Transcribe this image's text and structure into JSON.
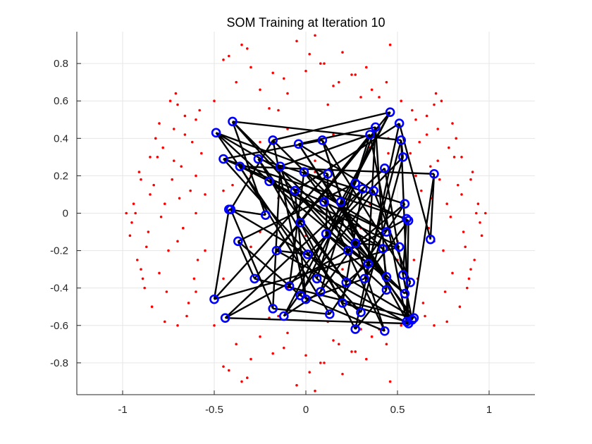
{
  "chart_data": {
    "type": "scatter",
    "title": "SOM Training at Iteration 10",
    "xlabel": "",
    "ylabel": "",
    "xlim": [
      -1.25,
      1.25
    ],
    "ylim": [
      -0.97,
      0.97
    ],
    "x_ticks": [
      -1,
      -0.5,
      0,
      0.5,
      1
    ],
    "x_tick_labels": [
      "-1",
      "-0.5",
      "0",
      "0.5",
      "1"
    ],
    "y_ticks": [
      -0.8,
      -0.6,
      -0.4,
      -0.2,
      0,
      0.2,
      0.4,
      0.6,
      0.8
    ],
    "y_tick_labels": [
      "-0.8",
      "-0.6",
      "-0.4",
      "-0.2",
      "0",
      "0.2",
      "0.4",
      "0.6",
      "0.8"
    ],
    "grid": true,
    "data_points_color": "#ff0000",
    "neuron_color": "#0000ff",
    "connection_color": "#000000",
    "data_points": {
      "x": [
        -0.72,
        -0.66,
        -0.81,
        -0.9,
        -0.77,
        -0.62,
        -0.95,
        -0.7,
        -0.85,
        -0.68,
        -0.92,
        -0.8,
        -0.74,
        -0.6,
        -0.88,
        -0.64,
        -0.78,
        -0.93,
        -0.7,
        -0.83,
        -0.58,
        -0.75,
        -0.9,
        -0.66,
        -0.86,
        -0.72,
        -0.61,
        -0.8,
        -0.96,
        -0.69,
        -0.84,
        -0.57,
        -0.76,
        -0.91,
        -0.63,
        -0.79,
        -0.87,
        -0.71,
        -0.94,
        -0.65,
        -0.82,
        -0.59,
        -0.73,
        -0.89,
        -0.67,
        -0.98,
        -0.6,
        -0.77,
        -0.85,
        -0.7,
        0.72,
        0.66,
        0.81,
        0.9,
        0.77,
        0.62,
        0.95,
        0.7,
        0.85,
        0.68,
        0.92,
        0.8,
        0.74,
        0.6,
        0.88,
        0.64,
        0.78,
        0.93,
        0.7,
        0.83,
        0.58,
        0.75,
        0.9,
        0.66,
        0.86,
        0.72,
        0.61,
        0.8,
        0.96,
        0.69,
        0.84,
        0.57,
        0.76,
        0.91,
        0.63,
        0.79,
        0.87,
        0.71,
        0.94,
        0.65,
        0.82,
        0.59,
        0.73,
        0.89,
        0.67,
        0.98,
        0.6,
        0.77,
        0.85,
        0.7,
        -0.45,
        -0.32,
        -0.18,
        -0.05,
        0.08,
        0.2,
        0.33,
        0.46,
        -0.38,
        -0.25,
        -0.12,
        0.02,
        0.15,
        0.27,
        0.4,
        -0.5,
        -0.3,
        -0.1,
        0.05,
        0.18,
        0.36,
        0.52,
        -0.42,
        -0.2,
        0.0,
        0.12,
        0.3,
        0.44,
        -0.35,
        -0.15,
        0.1,
        0.25,
        -0.45,
        -0.32,
        -0.18,
        -0.05,
        0.08,
        0.2,
        0.33,
        0.46,
        -0.38,
        -0.25,
        -0.12,
        0.02,
        0.15,
        0.27,
        0.4,
        -0.5,
        -0.3,
        -0.1,
        0.05,
        0.18,
        0.36,
        0.52,
        -0.42,
        -0.2,
        0.0,
        0.12,
        0.3,
        0.44,
        -0.35,
        -0.15,
        0.1,
        0.25,
        -0.55,
        -0.4,
        -0.25,
        -0.1,
        0.05,
        0.2,
        0.35,
        0.5,
        -0.55,
        -0.4,
        -0.25,
        -0.1,
        0.05,
        0.2,
        0.35,
        0.5,
        -0.6,
        -0.45,
        -0.3,
        -0.15,
        0.0,
        0.15,
        0.3,
        0.45,
        -0.6,
        -0.45,
        -0.3,
        -0.15,
        0.0,
        0.15,
        0.3,
        0.45
      ],
      "y": [
        0.45,
        0.52,
        0.3,
        0.18,
        0.05,
        0.38,
        -0.05,
        -0.15,
        0.1,
        0.25,
        -0.25,
        -0.32,
        0.6,
        0.2,
        -0.4,
        -0.48,
        0.35,
        0.0,
        -0.6,
        0.15,
        0.55,
        -0.2,
        -0.3,
        0.42,
        -0.1,
        0.28,
        -0.35,
        0.48,
        -0.12,
        0.08,
        -0.5,
        0.32,
        -0.42,
        0.22,
        0.12,
        -0.02,
        -0.18,
        0.64,
        0.05,
        -0.55,
        0.4,
        -0.25,
        0.18,
        -0.35,
        -0.08,
        0.0,
        0.5,
        -0.58,
        0.3,
        0.58,
        0.45,
        0.52,
        0.3,
        0.18,
        0.05,
        0.38,
        -0.05,
        -0.15,
        0.1,
        0.25,
        -0.25,
        -0.32,
        0.6,
        0.2,
        -0.4,
        -0.48,
        0.35,
        0.0,
        -0.6,
        0.15,
        0.55,
        -0.2,
        -0.3,
        0.42,
        -0.1,
        0.28,
        -0.35,
        0.48,
        -0.12,
        0.08,
        -0.5,
        0.32,
        -0.42,
        0.22,
        0.12,
        -0.02,
        -0.18,
        0.64,
        0.05,
        -0.55,
        0.4,
        -0.25,
        0.18,
        -0.35,
        -0.08,
        0.0,
        0.5,
        -0.58,
        0.3,
        0.58,
        0.82,
        0.88,
        0.75,
        0.92,
        0.8,
        0.86,
        0.78,
        0.9,
        0.7,
        0.66,
        0.72,
        0.85,
        0.68,
        0.74,
        0.62,
        0.6,
        0.78,
        0.64,
        0.95,
        0.7,
        0.66,
        0.6,
        0.84,
        0.56,
        0.76,
        0.58,
        0.62,
        0.7,
        0.9,
        0.55,
        0.8,
        0.74,
        -0.82,
        -0.88,
        -0.75,
        -0.92,
        -0.8,
        -0.86,
        -0.78,
        -0.9,
        -0.7,
        -0.66,
        -0.72,
        -0.85,
        -0.68,
        -0.74,
        -0.62,
        -0.6,
        -0.78,
        -0.64,
        -0.95,
        -0.7,
        -0.66,
        -0.6,
        -0.84,
        -0.56,
        -0.76,
        -0.58,
        -0.62,
        -0.7,
        -0.9,
        -0.55,
        -0.8,
        -0.74,
        0.1,
        0.3,
        -0.1,
        0.45,
        0.22,
        -0.3,
        0.05,
        -0.15,
        -0.2,
        0.15,
        0.38,
        -0.4,
        0.28,
        -0.05,
        0.35,
        -0.25,
        0.0,
        -0.35,
        0.2,
        0.08,
        -0.12,
        0.42,
        -0.28,
        0.32,
        -0.42,
        0.12,
        -0.18,
        0.25,
        -0.45,
        0.18,
        -0.08,
        0.4
      ]
    },
    "neurons": {
      "x": [
        -0.49,
        -0.4,
        -0.18,
        -0.04,
        0.09,
        0.35,
        0.38,
        0.46,
        0.52,
        -0.45,
        -0.36,
        -0.26,
        -0.14,
        -0.01,
        0.12,
        0.27,
        0.43,
        0.51,
        0.53,
        0.7,
        -0.42,
        -0.2,
        -0.06,
        0.1,
        0.19,
        0.31,
        0.37,
        0.54,
        0.56,
        -0.41,
        -0.22,
        -0.03,
        0.11,
        0.27,
        0.44,
        0.55,
        -0.37,
        -0.16,
        0.01,
        0.23,
        0.34,
        0.42,
        0.51,
        0.68,
        -0.28,
        -0.09,
        0.06,
        0.22,
        0.32,
        0.44,
        0.53,
        0.57,
        -0.5,
        -0.18,
        -0.03,
        0.08,
        0.2,
        0.3,
        0.44,
        0.54,
        0.59,
        -0.44,
        -0.12,
        0.0,
        0.13,
        0.27,
        0.43,
        0.55,
        0.58,
        0.56
      ],
      "y": [
        0.43,
        0.49,
        0.39,
        0.37,
        0.39,
        0.42,
        0.46,
        0.54,
        0.39,
        0.29,
        0.25,
        0.29,
        0.25,
        0.22,
        0.21,
        0.16,
        0.24,
        0.48,
        0.3,
        0.21,
        0.02,
        0.17,
        0.12,
        0.06,
        0.06,
        0.13,
        0.12,
        0.05,
        -0.04,
        0.02,
        -0.01,
        -0.05,
        -0.11,
        -0.16,
        -0.1,
        -0.03,
        -0.15,
        -0.2,
        -0.22,
        -0.2,
        -0.27,
        -0.19,
        -0.18,
        -0.14,
        -0.35,
        -0.39,
        -0.35,
        -0.37,
        -0.35,
        -0.34,
        -0.33,
        -0.37,
        -0.46,
        -0.51,
        -0.44,
        -0.42,
        -0.48,
        -0.53,
        -0.41,
        -0.43,
        -0.56,
        -0.56,
        -0.55,
        -0.46,
        -0.54,
        -0.62,
        -0.63,
        -0.58,
        -0.57,
        -0.59
      ]
    },
    "edges": [
      [
        0,
        21
      ],
      [
        0,
        14
      ],
      [
        0,
        34
      ],
      [
        0,
        46
      ],
      [
        1,
        8
      ],
      [
        1,
        30
      ],
      [
        1,
        39
      ],
      [
        1,
        59
      ],
      [
        2,
        7
      ],
      [
        2,
        29
      ],
      [
        2,
        41
      ],
      [
        2,
        63
      ],
      [
        3,
        6
      ],
      [
        3,
        26
      ],
      [
        3,
        49
      ],
      [
        3,
        68
      ],
      [
        4,
        9
      ],
      [
        4,
        33
      ],
      [
        4,
        51
      ],
      [
        4,
        66
      ],
      [
        5,
        12
      ],
      [
        5,
        37
      ],
      [
        5,
        55
      ],
      [
        5,
        67
      ],
      [
        6,
        15
      ],
      [
        6,
        40
      ],
      [
        6,
        58
      ],
      [
        7,
        24
      ],
      [
        7,
        44
      ],
      [
        7,
        62
      ],
      [
        8,
        18
      ],
      [
        8,
        48
      ],
      [
        8,
        69
      ],
      [
        9,
        23
      ],
      [
        9,
        35
      ],
      [
        9,
        57
      ],
      [
        10,
        19
      ],
      [
        10,
        42
      ],
      [
        10,
        64
      ],
      [
        11,
        27
      ],
      [
        11,
        47
      ],
      [
        11,
        56
      ],
      [
        12,
        31
      ],
      [
        12,
        53
      ],
      [
        13,
        28
      ],
      [
        13,
        45
      ],
      [
        13,
        60
      ],
      [
        14,
        32
      ],
      [
        14,
        52
      ],
      [
        15,
        36
      ],
      [
        15,
        54
      ],
      [
        16,
        25
      ],
      [
        16,
        50
      ],
      [
        16,
        61
      ],
      [
        17,
        22
      ],
      [
        17,
        43
      ],
      [
        17,
        65
      ],
      [
        18,
        38
      ],
      [
        18,
        57
      ],
      [
        19,
        43
      ],
      [
        19,
        68
      ],
      [
        20,
        30
      ],
      [
        20,
        52
      ],
      [
        21,
        41
      ],
      [
        21,
        59
      ],
      [
        22,
        49
      ],
      [
        22,
        63
      ],
      [
        23,
        34
      ],
      [
        23,
        66
      ],
      [
        24,
        46
      ],
      [
        24,
        69
      ],
      [
        25,
        45
      ],
      [
        25,
        56
      ],
      [
        26,
        51
      ],
      [
        26,
        62
      ],
      [
        27,
        39
      ],
      [
        27,
        64
      ],
      [
        28,
        48
      ],
      [
        28,
        67
      ],
      [
        29,
        53
      ],
      [
        29,
        60
      ],
      [
        31,
        47
      ],
      [
        31,
        65
      ],
      [
        32,
        40
      ],
      [
        32,
        58
      ],
      [
        33,
        42
      ],
      [
        33,
        55
      ],
      [
        35,
        50
      ],
      [
        35,
        61
      ],
      [
        36,
        44
      ],
      [
        36,
        54
      ],
      [
        37,
        38
      ],
      [
        37,
        69
      ],
      [
        40,
        47
      ],
      [
        41,
        49
      ],
      [
        42,
        52
      ],
      [
        44,
        60
      ],
      [
        46,
        57
      ],
      [
        48,
        63
      ],
      [
        50,
        68
      ],
      [
        51,
        59
      ],
      [
        53,
        64
      ],
      [
        54,
        66
      ],
      [
        55,
        62
      ],
      [
        56,
        67
      ],
      [
        58,
        65
      ],
      [
        61,
        69
      ]
    ]
  }
}
